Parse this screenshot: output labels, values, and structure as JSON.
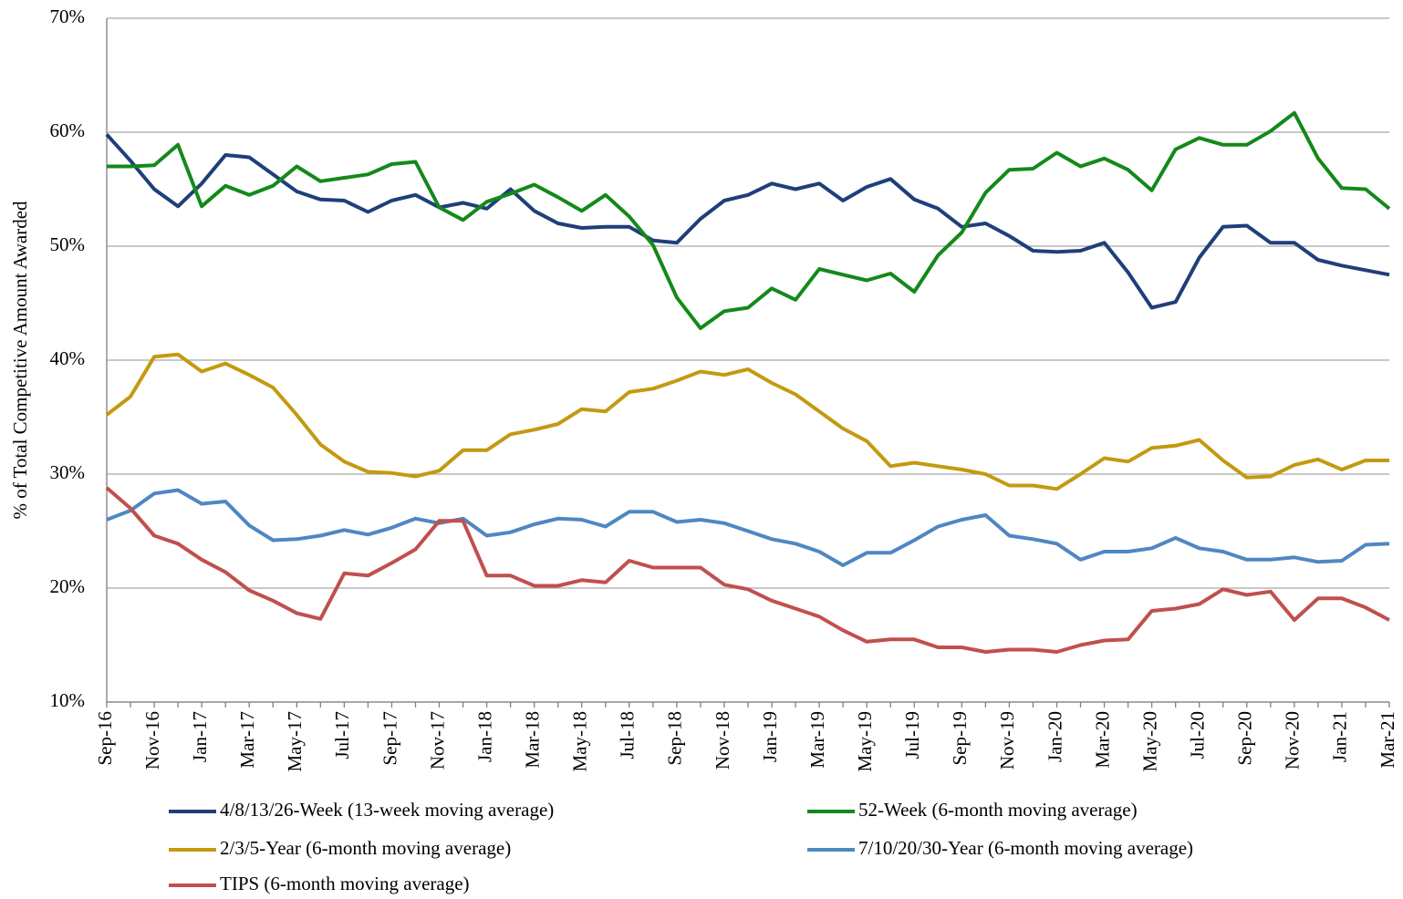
{
  "chart_data": {
    "type": "line",
    "y_label": "% of Total Competitive  Amount Awarded",
    "categories": [
      "Sep-16",
      null,
      "Nov-16",
      null,
      "Jan-17",
      null,
      "Mar-17",
      null,
      "May-17",
      null,
      "Jul-17",
      null,
      "Sep-17",
      null,
      "Nov-17",
      null,
      "Jan-18",
      null,
      "Mar-18",
      null,
      "May-18",
      null,
      "Jul-18",
      null,
      "Sep-18",
      null,
      "Nov-18",
      null,
      "Jan-19",
      null,
      "Mar-19",
      null,
      "May-19",
      null,
      "Jul-19",
      null,
      "Sep-19",
      null,
      "Nov-19",
      null,
      "Jan-20",
      null,
      "Mar-20",
      null,
      "May-20",
      null,
      "Jul-20",
      null,
      "Sep-20",
      null,
      "Nov-20",
      null,
      "Jan-21",
      null,
      "Mar-21"
    ],
    "ylim": [
      10,
      70
    ],
    "yticks": [
      {
        "value": 10,
        "label": "10%"
      },
      {
        "value": 20,
        "label": "20%"
      },
      {
        "value": 30,
        "label": "30%"
      },
      {
        "value": 40,
        "label": "40%"
      },
      {
        "value": 50,
        "label": "50%"
      },
      {
        "value": 60,
        "label": "60%"
      },
      {
        "value": 70,
        "label": "70%"
      }
    ],
    "grid": true,
    "series": [
      {
        "name": "4/8/13/26-Week (13-week moving average)",
        "color": "#1f3f7a",
        "values": [
          59.8,
          57.5,
          55,
          53.5,
          55.5,
          58,
          57.8,
          56.3,
          54.8,
          54.1,
          54,
          53,
          54,
          54.5,
          53.4,
          53.8,
          53.3,
          55,
          53.1,
          52,
          51.6,
          51.7,
          51.7,
          50.5,
          50.3,
          52.4,
          54,
          54.5,
          55.5,
          55,
          55.5,
          54,
          55.2,
          55.9,
          54.1,
          53.3,
          51.7,
          52,
          50.9,
          49.6,
          49.5,
          49.6,
          50.3,
          47.7,
          44.6,
          45.1,
          49,
          51.7,
          51.8,
          50.3,
          50.3,
          48.8,
          48.3,
          47.9,
          47.5
        ]
      },
      {
        "name": "52-Week (6-month moving average)",
        "color": "#13891a",
        "values": [
          57,
          57,
          57.1,
          58.9,
          53.5,
          55.3,
          54.5,
          55.3,
          57,
          55.7,
          56,
          56.3,
          57.2,
          57.4,
          53.4,
          52.3,
          53.9,
          54.6,
          55.4,
          54.3,
          53.1,
          54.5,
          52.6,
          50.1,
          45.5,
          42.8,
          44.3,
          44.6,
          46.3,
          45.3,
          48,
          47.5,
          47,
          47.6,
          46,
          49.2,
          51.2,
          54.7,
          56.7,
          56.8,
          58.2,
          57,
          57.7,
          56.7,
          54.9,
          58.5,
          59.5,
          58.9,
          58.9,
          60.1,
          61.7,
          57.7,
          55.1,
          55,
          53.3
        ]
      },
      {
        "name": "2/3/5-Year (6-month moving average)",
        "color": "#c39a10",
        "values": [
          35.2,
          36.8,
          40.3,
          40.5,
          39,
          39.7,
          38.7,
          37.6,
          35.2,
          32.6,
          31.1,
          30.2,
          30.1,
          29.8,
          30.3,
          32.1,
          32.1,
          33.5,
          33.9,
          34.4,
          35.7,
          35.5,
          37.2,
          37.5,
          38.2,
          39,
          38.7,
          39.2,
          38,
          37,
          35.5,
          34,
          32.9,
          30.7,
          31,
          30.7,
          30.4,
          30,
          29,
          29,
          28.7,
          30,
          31.4,
          31.1,
          32.3,
          32.5,
          33,
          31.2,
          29.7,
          29.8,
          30.8,
          31.3,
          30.4,
          31.2,
          31.2
        ]
      },
      {
        "name": "7/10/20/30-Year (6-month moving average)",
        "color": "#4f87c2",
        "values": [
          26,
          26.8,
          28.3,
          28.6,
          27.4,
          27.6,
          25.5,
          24.2,
          24.3,
          24.6,
          25.1,
          24.7,
          25.3,
          26.1,
          25.7,
          26.1,
          24.6,
          24.9,
          25.6,
          26.1,
          26,
          25.4,
          26.7,
          26.7,
          25.8,
          26,
          25.7,
          25,
          24.3,
          23.9,
          23.2,
          22,
          23.1,
          23.1,
          24.2,
          25.4,
          26,
          26.4,
          24.6,
          24.3,
          23.9,
          22.5,
          23.2,
          23.2,
          23.5,
          24.4,
          23.5,
          23.2,
          22.5,
          22.5,
          22.7,
          22.3,
          22.4,
          23.8,
          23.9
        ]
      },
      {
        "name": "TIPS (6-month moving average)",
        "color": "#c0504d",
        "values": [
          28.8,
          27,
          24.6,
          23.9,
          22.5,
          21.4,
          19.8,
          18.9,
          17.8,
          17.3,
          21.3,
          21.1,
          22.2,
          23.4,
          25.9,
          25.9,
          21.1,
          21.1,
          20.2,
          20.2,
          20.7,
          20.5,
          22.4,
          21.8,
          21.8,
          21.8,
          20.3,
          19.9,
          18.9,
          18.2,
          17.5,
          16.3,
          15.3,
          15.5,
          15.5,
          14.8,
          14.8,
          14.4,
          14.6,
          14.6,
          14.4,
          15,
          15.4,
          15.5,
          18,
          18.2,
          18.6,
          19.9,
          19.4,
          19.7,
          17.2,
          19.1,
          19.1,
          18.3,
          17.2
        ]
      }
    ]
  }
}
